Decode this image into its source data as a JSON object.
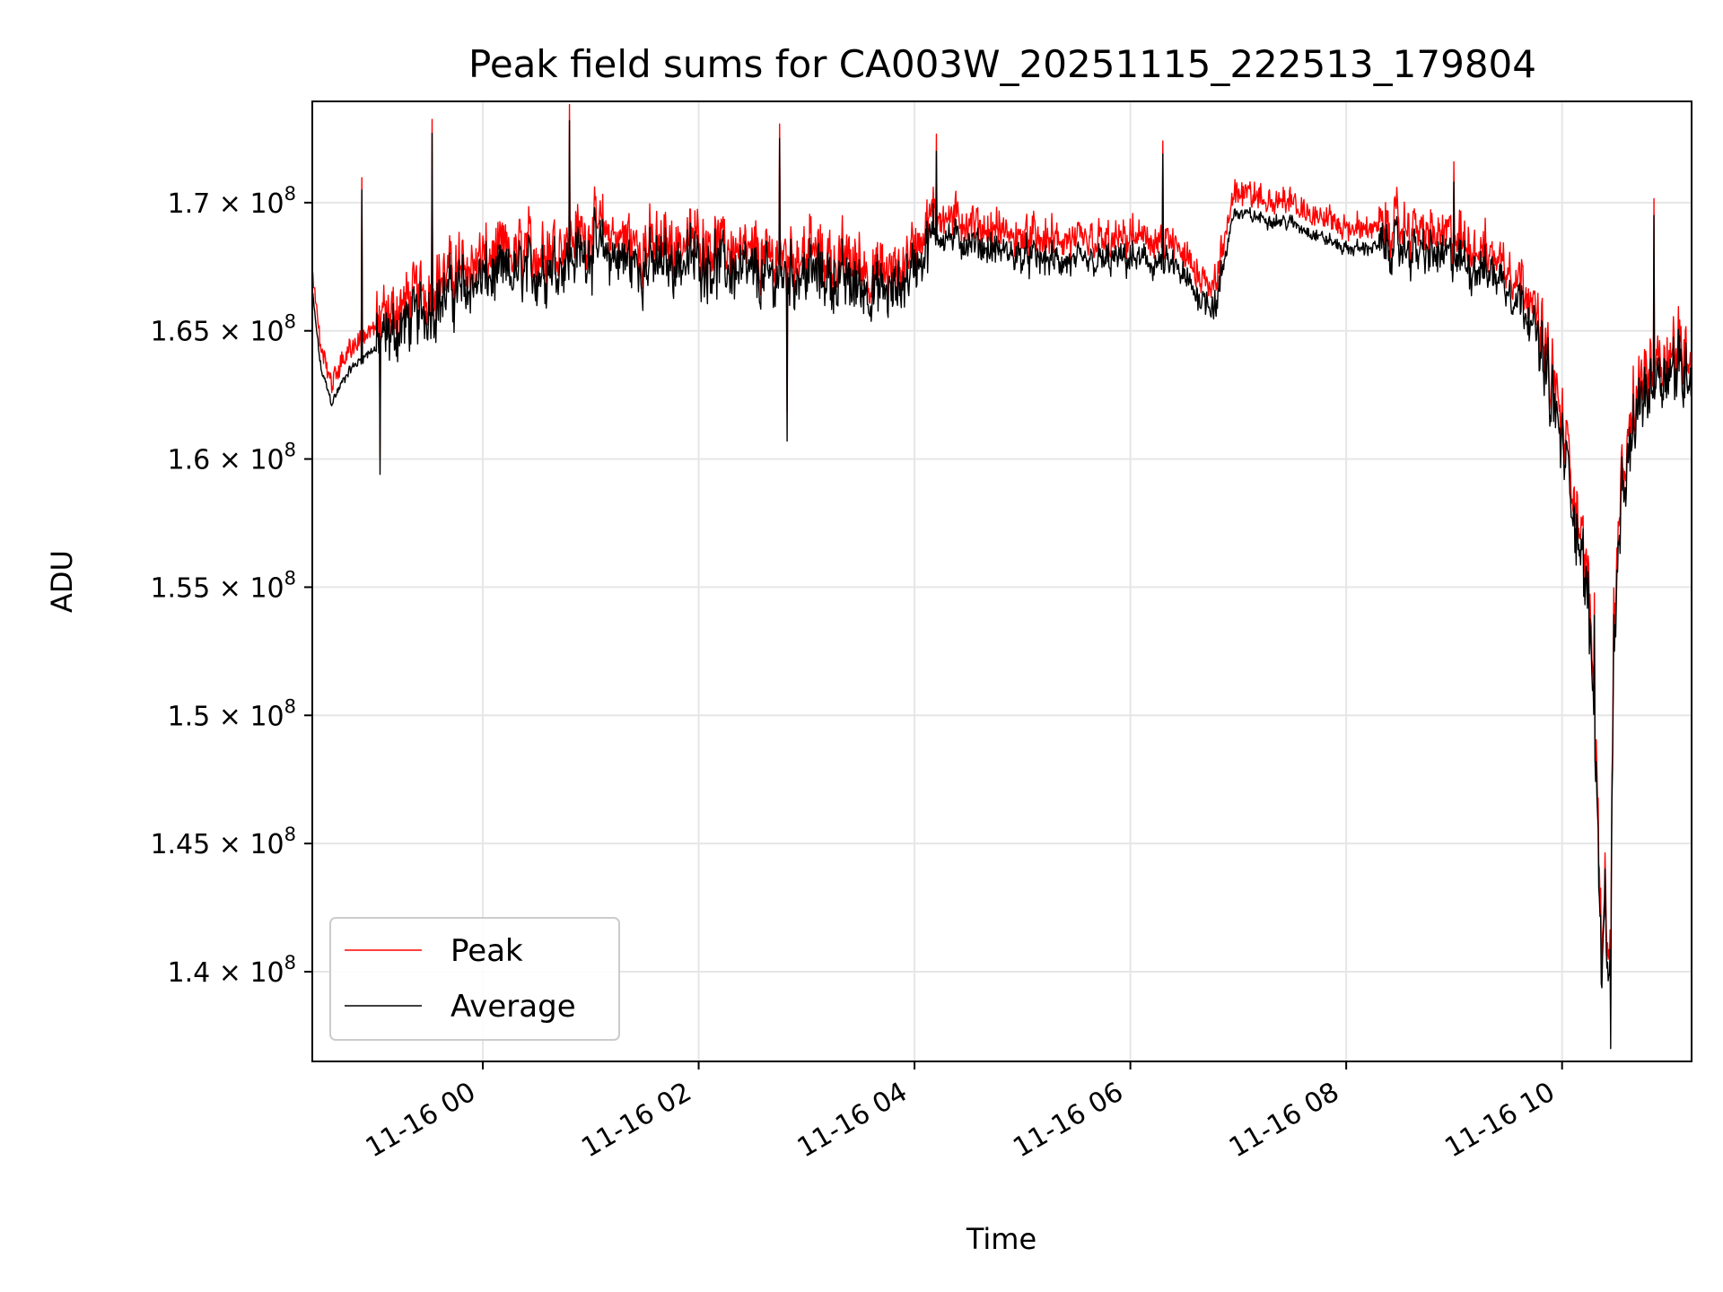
{
  "chart_data": {
    "type": "line",
    "title": "Peak field sums for CA003W_20251115_222513_179804",
    "xlabel": "Time",
    "ylabel": "ADU",
    "xlim_hours": [
      -1.58,
      11.2
    ],
    "ylim": [
      136500000,
      173950000
    ],
    "y_ticks": [
      {
        "value": 140000000,
        "mantissa": "1.4",
        "exp": "8"
      },
      {
        "value": 145000000,
        "mantissa": "1.45",
        "exp": "8"
      },
      {
        "value": 150000000,
        "mantissa": "1.5",
        "exp": "8"
      },
      {
        "value": 155000000,
        "mantissa": "1.55",
        "exp": "8"
      },
      {
        "value": 160000000,
        "mantissa": "1.6",
        "exp": "8"
      },
      {
        "value": 165000000,
        "mantissa": "1.65",
        "exp": "8"
      },
      {
        "value": 170000000,
        "mantissa": "1.7",
        "exp": "8"
      }
    ],
    "x_ticks": [
      {
        "hours": 0,
        "label": "11-16 00"
      },
      {
        "hours": 2,
        "label": "11-16 02"
      },
      {
        "hours": 4,
        "label": "11-16 04"
      },
      {
        "hours": 6,
        "label": "11-16 06"
      },
      {
        "hours": 8,
        "label": "11-16 08"
      },
      {
        "hours": 10,
        "label": "11-16 10"
      }
    ],
    "grid": true,
    "legend_position": "lower-left",
    "series": [
      {
        "name": "Peak",
        "color": "#ff0000",
        "offset": 450000,
        "noise_scale": 1.15
      },
      {
        "name": "Average",
        "color": "#000000",
        "offset": 0,
        "noise_scale": 1.0
      }
    ],
    "trend_keypoints_hours_adu": [
      [
        -1.58,
        166500000
      ],
      [
        -1.5,
        163500000
      ],
      [
        -1.4,
        162200000
      ],
      [
        -1.25,
        163400000
      ],
      [
        -1.1,
        164000000
      ],
      [
        -0.95,
        164500000
      ],
      [
        -0.8,
        165000000
      ],
      [
        -0.6,
        165600000
      ],
      [
        -0.3,
        166500000
      ],
      [
        0.0,
        167000000
      ],
      [
        0.5,
        167300000
      ],
      [
        1.0,
        168200000
      ],
      [
        1.5,
        167500000
      ],
      [
        2.0,
        167800000
      ],
      [
        2.6,
        167000000
      ],
      [
        3.0,
        167300000
      ],
      [
        3.8,
        166400000
      ],
      [
        4.2,
        168800000
      ],
      [
        4.6,
        168300000
      ],
      [
        5.0,
        167900000
      ],
      [
        5.5,
        167600000
      ],
      [
        6.0,
        167800000
      ],
      [
        6.4,
        167500000
      ],
      [
        6.6,
        166500000
      ],
      [
        6.8,
        166000000
      ],
      [
        6.95,
        169600000
      ],
      [
        7.5,
        169200000
      ],
      [
        8.0,
        168200000
      ],
      [
        8.4,
        168300000
      ],
      [
        9.0,
        167800000
      ],
      [
        9.4,
        167200000
      ],
      [
        9.7,
        165800000
      ],
      [
        9.9,
        162500000
      ],
      [
        10.1,
        158500000
      ],
      [
        10.25,
        154000000
      ],
      [
        10.32,
        148000000
      ],
      [
        10.36,
        140000000
      ],
      [
        10.4,
        143500000
      ],
      [
        10.44,
        138500000
      ],
      [
        10.48,
        153000000
      ],
      [
        10.55,
        158000000
      ],
      [
        10.7,
        162000000
      ],
      [
        10.9,
        163500000
      ],
      [
        11.2,
        163500000
      ]
    ],
    "spikes_hours_adu_average": [
      [
        -0.95,
        159400000
      ],
      [
        -1.12,
        170500000
      ],
      [
        -0.47,
        172700000
      ],
      [
        0.8,
        173200000
      ],
      [
        2.75,
        172500000
      ],
      [
        2.82,
        160700000
      ],
      [
        4.2,
        172000000
      ],
      [
        6.3,
        171900000
      ],
      [
        9.0,
        170800000
      ],
      [
        10.3,
        153900000
      ],
      [
        10.45,
        137000000
      ],
      [
        10.85,
        169500000
      ]
    ]
  }
}
